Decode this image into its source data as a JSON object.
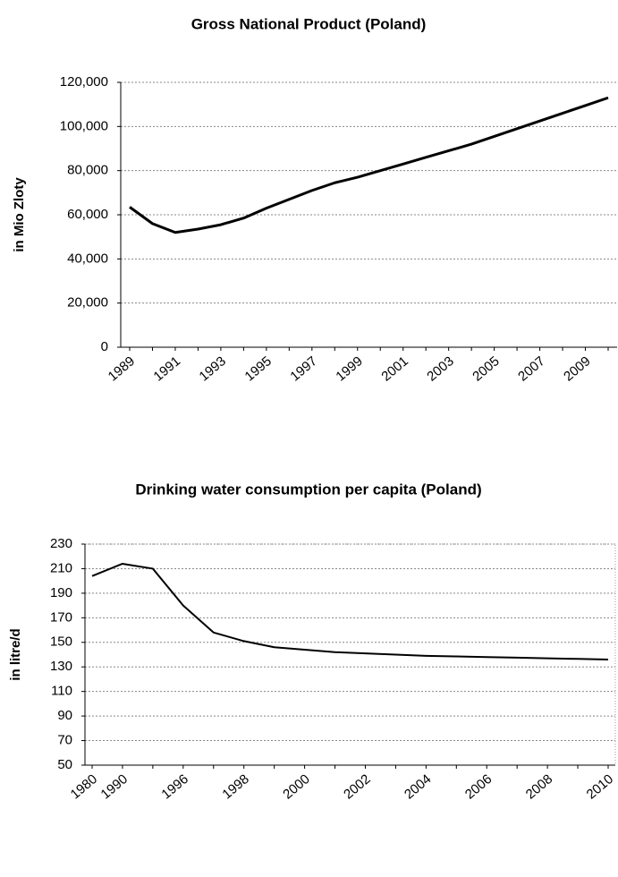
{
  "chart_data": [
    {
      "type": "line",
      "title": "Gross National Product (Poland)",
      "y_label": "in Mio Zloty",
      "categories": [
        "1989",
        null,
        "1991",
        null,
        "1993",
        null,
        "1995",
        null,
        "1997",
        null,
        "1999",
        null,
        "2001",
        null,
        "2003",
        null,
        "2005",
        null,
        "2007",
        null,
        "2009",
        null
      ],
      "series": [
        {
          "color": "#000000",
          "values": [
            63500,
            56000,
            52000,
            53500,
            55500,
            58500,
            63000,
            67000,
            71000,
            74500,
            77000,
            80000,
            83000,
            86000,
            89000,
            92000,
            95500,
            99000,
            102500,
            106000,
            109500,
            113000
          ]
        }
      ],
      "ylim": [
        0,
        120000
      ],
      "yticks": [
        0,
        {
          "value": 20000,
          "label": "20,000"
        },
        {
          "value": 40000,
          "label": "40,000"
        },
        {
          "value": 60000,
          "label": "60,000"
        },
        {
          "value": 80000,
          "label": "80,000"
        },
        {
          "value": 100000,
          "label": "100,000"
        },
        {
          "value": 120000,
          "label": "120,000"
        }
      ],
      "grid": true
    },
    {
      "type": "line",
      "title": "Drinking water consumption per capita (Poland)",
      "y_label": "in litre/d",
      "categories": [
        "1980",
        "1990",
        null,
        "1996",
        null,
        "1998",
        null,
        "2000",
        null,
        "2002",
        null,
        "2004",
        null,
        "2006",
        null,
        "2008",
        null,
        "2010"
      ],
      "series": [
        {
          "color": "#000000",
          "values": [
            204,
            214,
            210,
            180,
            158,
            151,
            146,
            144,
            142,
            141,
            140,
            139,
            138.5,
            138,
            137.5,
            137,
            136.5,
            136
          ]
        }
      ],
      "ylim": [
        50,
        230
      ],
      "yticks": [
        50,
        70,
        90,
        110,
        130,
        150,
        170,
        190,
        210,
        230
      ],
      "grid": true
    }
  ]
}
